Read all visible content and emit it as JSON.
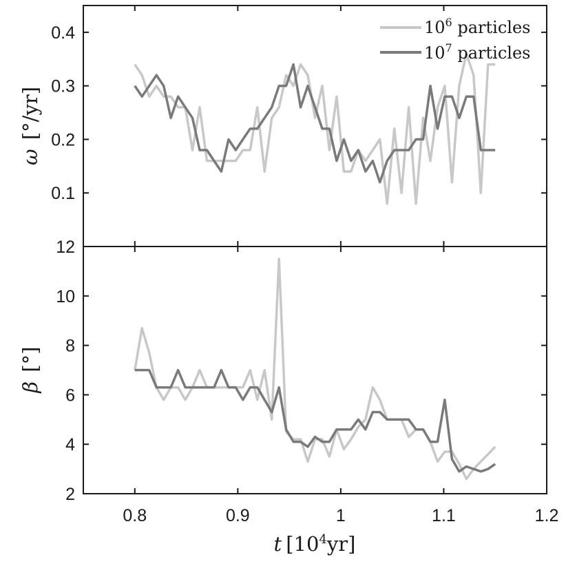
{
  "chart_data": [
    {
      "type": "line",
      "panel": "top",
      "ylabel_symbol": "ω",
      "ylabel_unit": "[°/yr]",
      "ylim": [
        0,
        0.45
      ],
      "yticks": [
        0.1,
        0.2,
        0.3,
        0.4
      ],
      "ytick_labels": [
        "0.1",
        "0.2",
        "0.3",
        "0.4"
      ],
      "xlim": [
        0.75,
        1.2
      ],
      "series": [
        {
          "name": "10^6 particles",
          "color": "#c8c8c8",
          "x": [
            0.8,
            0.807,
            0.814,
            0.821,
            0.828,
            0.835,
            0.842,
            0.849,
            0.856,
            0.863,
            0.87,
            0.877,
            0.884,
            0.891,
            0.898,
            0.905,
            0.912,
            0.919,
            0.926,
            0.933,
            0.94,
            0.947,
            0.954,
            0.961,
            0.968,
            0.975,
            0.982,
            0.989,
            0.996,
            1.003,
            1.01,
            1.017,
            1.024,
            1.031,
            1.038,
            1.045,
            1.052,
            1.059,
            1.066,
            1.073,
            1.08,
            1.087,
            1.094,
            1.101,
            1.108,
            1.115,
            1.122,
            1.129,
            1.136,
            1.143,
            1.15
          ],
          "y": [
            0.34,
            0.32,
            0.28,
            0.3,
            0.28,
            0.28,
            0.26,
            0.26,
            0.18,
            0.26,
            0.16,
            0.16,
            0.16,
            0.16,
            0.16,
            0.18,
            0.18,
            0.26,
            0.14,
            0.24,
            0.26,
            0.32,
            0.3,
            0.34,
            0.32,
            0.24,
            0.3,
            0.18,
            0.28,
            0.14,
            0.14,
            0.18,
            0.16,
            0.18,
            0.2,
            0.08,
            0.22,
            0.1,
            0.26,
            0.08,
            0.24,
            0.16,
            0.26,
            0.3,
            0.12,
            0.3,
            0.36,
            0.32,
            0.1,
            0.34,
            0.34
          ]
        },
        {
          "name": "10^7 particles",
          "color": "#7a7a7a",
          "x": [
            0.8,
            0.807,
            0.814,
            0.821,
            0.828,
            0.835,
            0.842,
            0.849,
            0.856,
            0.863,
            0.87,
            0.877,
            0.884,
            0.891,
            0.898,
            0.905,
            0.912,
            0.919,
            0.926,
            0.933,
            0.94,
            0.947,
            0.954,
            0.961,
            0.968,
            0.975,
            0.982,
            0.989,
            0.996,
            1.003,
            1.01,
            1.017,
            1.024,
            1.031,
            1.038,
            1.045,
            1.052,
            1.059,
            1.066,
            1.073,
            1.08,
            1.087,
            1.094,
            1.101,
            1.108,
            1.115,
            1.122,
            1.129,
            1.136,
            1.143,
            1.15
          ],
          "y": [
            0.3,
            0.28,
            0.3,
            0.32,
            0.3,
            0.24,
            0.28,
            0.26,
            0.24,
            0.18,
            0.18,
            0.16,
            0.14,
            0.2,
            0.18,
            0.2,
            0.22,
            0.22,
            0.24,
            0.26,
            0.3,
            0.3,
            0.34,
            0.26,
            0.3,
            0.26,
            0.22,
            0.22,
            0.16,
            0.2,
            0.16,
            0.18,
            0.14,
            0.16,
            0.12,
            0.16,
            0.18,
            0.18,
            0.18,
            0.2,
            0.2,
            0.3,
            0.22,
            0.28,
            0.28,
            0.24,
            0.28,
            0.28,
            0.18,
            0.18,
            0.18
          ]
        }
      ],
      "legend": {
        "placement": "top-right",
        "entries": [
          {
            "base": "10",
            "exp": "6",
            "suffix": " particles"
          },
          {
            "base": "10",
            "exp": "7",
            "suffix": " particles"
          }
        ]
      }
    },
    {
      "type": "line",
      "panel": "bottom",
      "ylabel_symbol": "β",
      "ylabel_unit": "[°]",
      "ylim": [
        2,
        12
      ],
      "yticks": [
        2,
        4,
        6,
        8,
        10,
        12
      ],
      "ytick_labels": [
        "2",
        "4",
        "6",
        "8",
        "10",
        "12"
      ],
      "xlim": [
        0.75,
        1.2
      ],
      "xticks": [
        0.8,
        0.9,
        1.0,
        1.1,
        1.2
      ],
      "xtick_labels": [
        "0.8",
        "0.9",
        "1",
        "1.1",
        "1.2"
      ],
      "xlabel_symbol": "t",
      "xlabel_unit_open": "[10",
      "xlabel_unit_exp": "4",
      "xlabel_unit_close": "yr]",
      "series": [
        {
          "name": "10^6 particles",
          "color": "#c8c8c8",
          "x": [
            0.8,
            0.807,
            0.814,
            0.821,
            0.828,
            0.835,
            0.842,
            0.849,
            0.856,
            0.863,
            0.87,
            0.877,
            0.884,
            0.891,
            0.898,
            0.905,
            0.912,
            0.919,
            0.926,
            0.933,
            0.94,
            0.947,
            0.954,
            0.961,
            0.968,
            0.975,
            0.982,
            0.989,
            0.996,
            1.003,
            1.01,
            1.017,
            1.024,
            1.031,
            1.038,
            1.045,
            1.052,
            1.059,
            1.066,
            1.073,
            1.08,
            1.087,
            1.094,
            1.101,
            1.108,
            1.115,
            1.122,
            1.129,
            1.136,
            1.143,
            1.15
          ],
          "y": [
            7.0,
            8.7,
            7.7,
            6.3,
            5.8,
            6.3,
            6.3,
            5.8,
            6.3,
            7.0,
            6.3,
            6.3,
            6.3,
            6.3,
            6.3,
            6.3,
            7.0,
            5.8,
            7.0,
            5.0,
            11.5,
            4.5,
            4.2,
            4.2,
            3.3,
            4.2,
            4.2,
            3.5,
            4.6,
            3.8,
            4.2,
            4.7,
            5.0,
            6.3,
            5.8,
            5.0,
            5.0,
            5.0,
            4.3,
            4.6,
            4.6,
            4.1,
            3.3,
            3.7,
            3.7,
            3.2,
            2.6,
            3.0,
            3.3,
            3.6,
            3.9
          ]
        },
        {
          "name": "10^7 particles",
          "color": "#7a7a7a",
          "x": [
            0.8,
            0.807,
            0.814,
            0.821,
            0.828,
            0.835,
            0.842,
            0.849,
            0.856,
            0.863,
            0.87,
            0.877,
            0.884,
            0.891,
            0.898,
            0.905,
            0.912,
            0.919,
            0.926,
            0.933,
            0.94,
            0.947,
            0.954,
            0.961,
            0.968,
            0.975,
            0.982,
            0.989,
            0.996,
            1.003,
            1.01,
            1.017,
            1.024,
            1.031,
            1.038,
            1.045,
            1.052,
            1.059,
            1.066,
            1.073,
            1.08,
            1.087,
            1.094,
            1.101,
            1.108,
            1.115,
            1.122,
            1.129,
            1.136,
            1.143,
            1.15
          ],
          "y": [
            7.0,
            7.0,
            7.0,
            6.3,
            6.3,
            6.3,
            7.0,
            6.3,
            6.3,
            6.3,
            6.3,
            6.3,
            7.0,
            6.3,
            6.3,
            5.8,
            6.3,
            6.3,
            5.8,
            5.3,
            6.3,
            4.6,
            4.1,
            4.1,
            3.9,
            4.3,
            4.1,
            4.1,
            4.6,
            4.6,
            4.6,
            5.0,
            4.6,
            5.3,
            5.3,
            5.0,
            5.0,
            5.0,
            5.0,
            4.6,
            4.6,
            4.1,
            4.1,
            5.8,
            3.4,
            2.9,
            3.1,
            3.0,
            2.9,
            3.0,
            3.2
          ]
        }
      ]
    }
  ]
}
